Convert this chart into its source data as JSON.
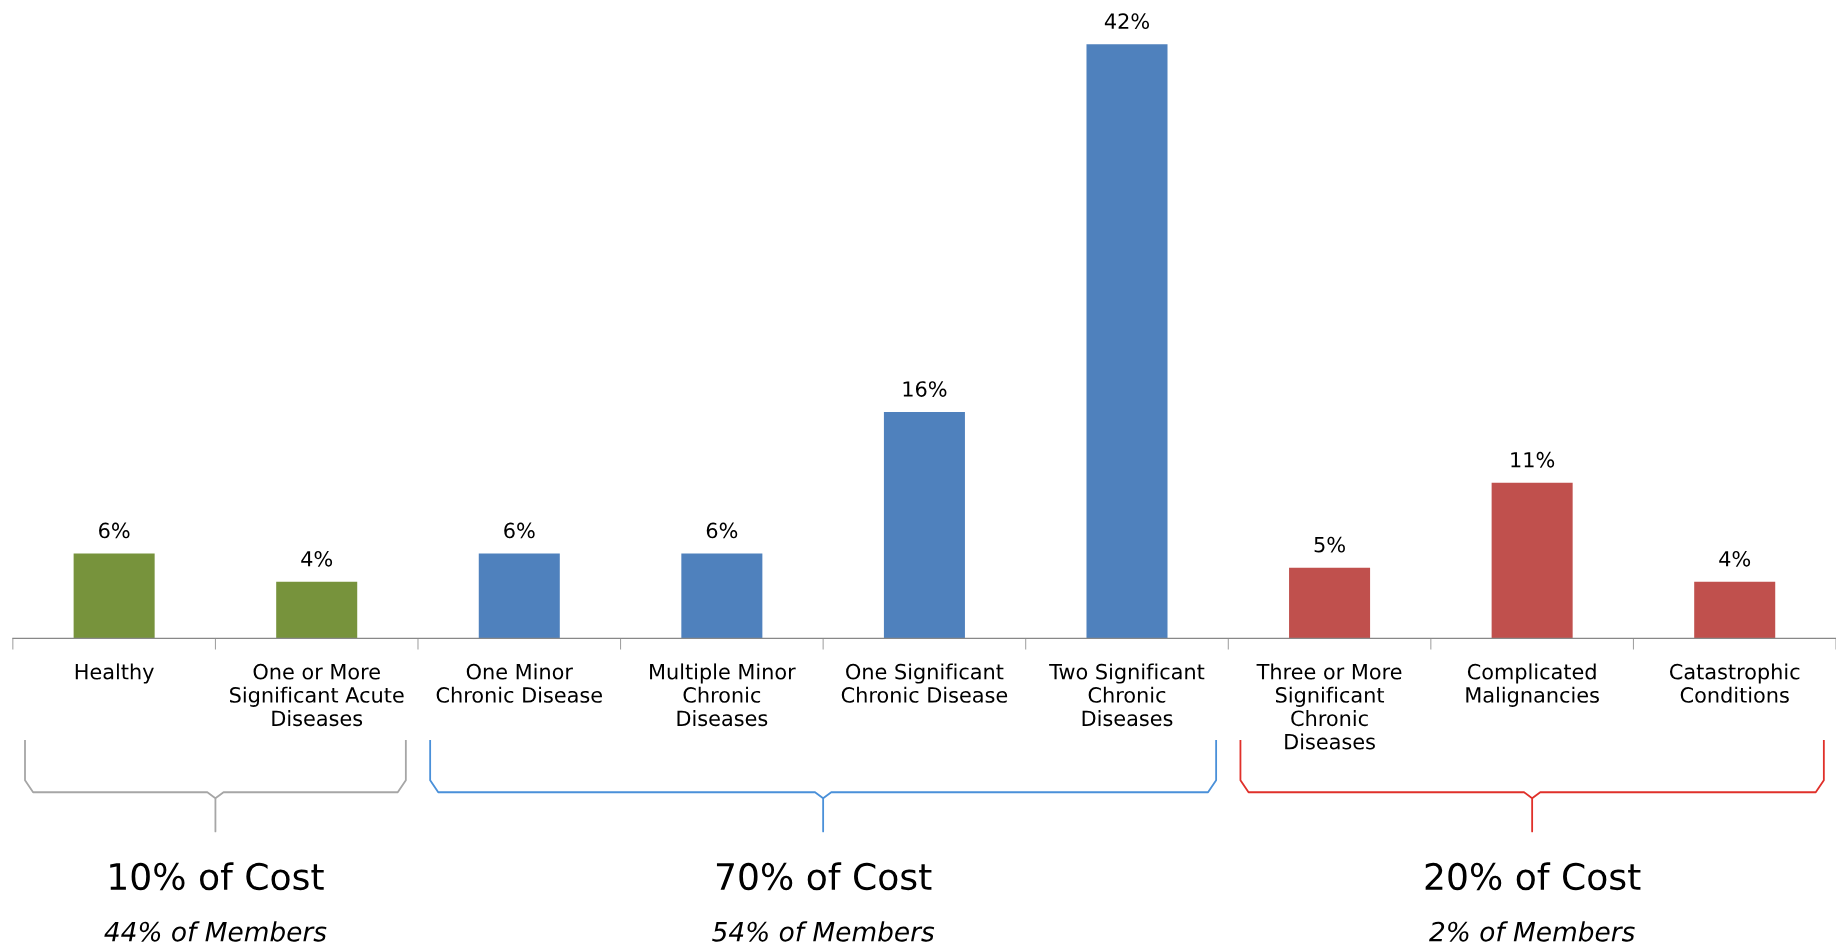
{
  "chart_data": {
    "type": "bar",
    "categories": [
      "Healthy",
      "One or More\nSignificant Acute\nDiseases",
      "One Minor\nChronic Disease",
      "Multiple Minor\nChronic\nDiseases",
      "One Significant\nChronic Disease",
      "Two Significant\nChronic\nDiseases",
      "Three or More\nSignificant\nChronic\nDiseases",
      "Complicated\nMalignancies",
      "Catastrophic\nConditions"
    ],
    "values": [
      6,
      4,
      6,
      6,
      16,
      42,
      5,
      11,
      4
    ],
    "colors": [
      "#77933c",
      "#77933c",
      "#4f81bd",
      "#4f81bd",
      "#4f81bd",
      "#4f81bd",
      "#c0504d",
      "#c0504d",
      "#c0504d"
    ],
    "value_labels": [
      "6%",
      "4%",
      "6%",
      "6%",
      "16%",
      "42%",
      "5%",
      "11%",
      "4%"
    ],
    "annotations": [
      "10% of Cost",
      "44% of Members",
      "70% of Cost",
      "54% of Members",
      "20% of Cost",
      "2% of Members"
    ],
    "grid": false,
    "legend": false
  }
}
